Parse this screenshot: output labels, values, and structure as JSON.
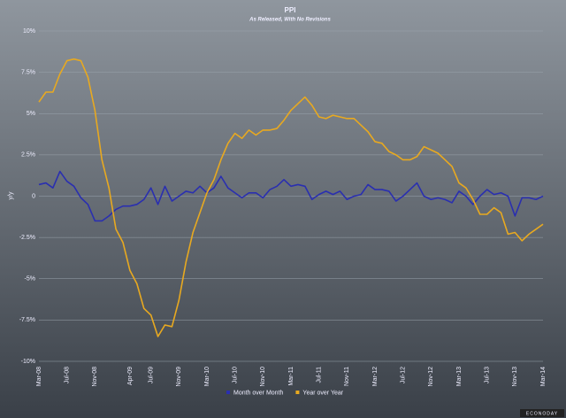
{
  "chart_data": {
    "type": "line",
    "title": "PPI",
    "subtitle": "As Released, With No Revisions",
    "y_label": "y/y",
    "source": "ECONODAY",
    "categories": [
      "Mar-08",
      null,
      null,
      null,
      "Jul-08",
      null,
      null,
      null,
      "Nov-08",
      null,
      null,
      null,
      null,
      "Apr-09",
      null,
      null,
      "Jul-09",
      null,
      null,
      null,
      "Nov-09",
      null,
      null,
      null,
      "Mar-10",
      null,
      null,
      null,
      "Jul-10",
      null,
      null,
      null,
      "Nov-10",
      null,
      null,
      null,
      "Mar-11",
      null,
      null,
      null,
      "Jul-11",
      null,
      null,
      null,
      "Nov-11",
      null,
      null,
      null,
      "Mar-12",
      null,
      null,
      null,
      "Jul-12",
      null,
      null,
      null,
      "Nov-12",
      null,
      null,
      null,
      "Mar-13",
      null,
      null,
      null,
      "Jul-13",
      null,
      null,
      null,
      "Nov-13",
      null,
      null,
      null,
      "Mar-14"
    ],
    "series": [
      {
        "name": "Month over Month",
        "color": "#2a2fb0",
        "values": [
          0.7,
          0.8,
          0.5,
          1.5,
          0.9,
          0.6,
          -0.1,
          -0.5,
          -1.5,
          -1.5,
          -1.2,
          -0.8,
          -0.6,
          -0.6,
          -0.5,
          -0.2,
          0.5,
          -0.5,
          0.6,
          -0.3,
          0.0,
          0.3,
          0.2,
          0.6,
          0.2,
          0.5,
          1.2,
          0.5,
          0.2,
          -0.1,
          0.2,
          0.2,
          -0.1,
          0.4,
          0.6,
          1.0,
          0.6,
          0.7,
          0.6,
          -0.2,
          0.1,
          0.3,
          0.1,
          0.3,
          -0.2,
          0.0,
          0.1,
          0.7,
          0.4,
          0.4,
          0.3,
          -0.3,
          0.0,
          0.4,
          0.8,
          0.0,
          -0.2,
          -0.1,
          -0.2,
          -0.4,
          0.3,
          0.0,
          -0.5,
          0.0,
          0.4,
          0.1,
          0.2,
          0.0,
          -1.2,
          -0.1,
          -0.1,
          -0.2,
          0.0
        ]
      },
      {
        "name": "Year over Year",
        "color": "#e8a920",
        "values": [
          5.7,
          6.3,
          6.3,
          7.4,
          8.2,
          8.3,
          8.2,
          7.2,
          5.2,
          2.2,
          0.5,
          -2.0,
          -2.8,
          -4.5,
          -5.3,
          -6.8,
          -7.2,
          -8.5,
          -7.8,
          -7.9,
          -6.3,
          -4.0,
          -2.2,
          -1.0,
          0.2,
          1.0,
          2.2,
          3.2,
          3.8,
          3.5,
          4.0,
          3.7,
          4.0,
          4.0,
          4.1,
          4.6,
          5.2,
          5.6,
          6.0,
          5.5,
          4.8,
          4.7,
          4.9,
          4.8,
          4.7,
          4.7,
          4.3,
          3.9,
          3.3,
          3.2,
          2.7,
          2.5,
          2.2,
          2.2,
          2.4,
          3.0,
          2.8,
          2.6,
          2.2,
          1.8,
          0.8,
          0.5,
          -0.2,
          -1.1,
          -1.1,
          -0.7,
          -1.0,
          -2.3,
          -2.2,
          -2.7,
          -2.3,
          -2.0,
          -1.7
        ]
      }
    ],
    "ylim": [
      -10,
      10
    ],
    "yticks": [
      {
        "value": -10,
        "label": "-10%"
      },
      {
        "value": -7.5,
        "label": "-7.5%"
      },
      {
        "value": -5,
        "label": "-5%"
      },
      {
        "value": -2.5,
        "label": "-2.5%"
      },
      0,
      {
        "value": 2.5,
        "label": "2.5%"
      },
      {
        "value": 5,
        "label": "5%"
      },
      {
        "value": 7.5,
        "label": "7.5%"
      },
      {
        "value": 10,
        "label": "10%"
      }
    ],
    "grid": true,
    "legend": "bottom"
  }
}
